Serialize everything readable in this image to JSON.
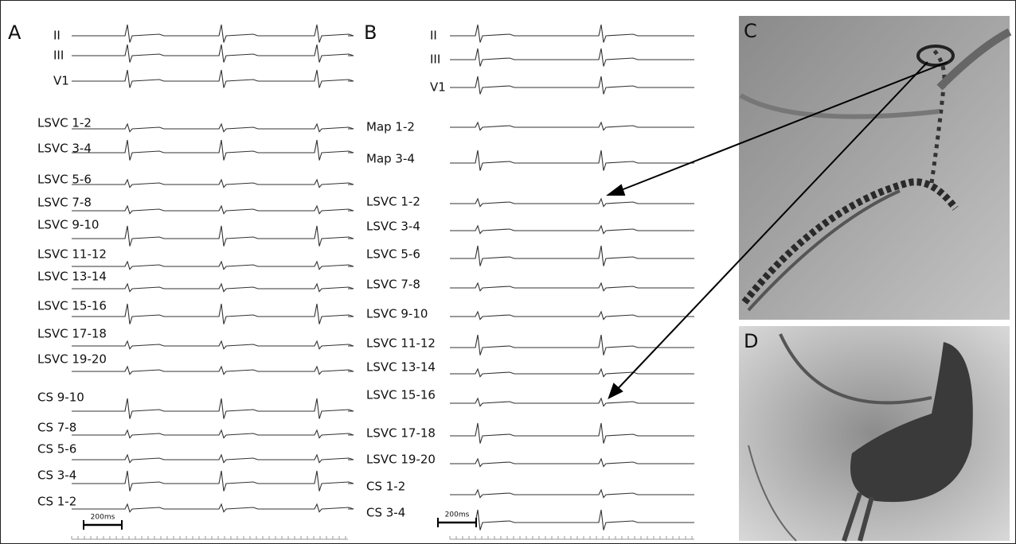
{
  "panels": [
    {
      "label": "A",
      "channels": [
        "II",
        "III",
        "V1",
        "LSVC 1-2",
        "LSVC 3-4",
        "LSVC 5-6",
        "LSVC 7-8",
        "LSVC 9-10",
        "LSVC 11-12",
        "LSVC 13-14",
        "LSVC 15-16",
        "LSVC 17-18",
        "LSVC 19-20",
        "CS 9-10",
        "CS 7-8",
        "CS 5-6",
        "CS 3-4",
        "CS 1-2"
      ],
      "scale_bar": "200ms"
    },
    {
      "label": "B",
      "channels": [
        "II",
        "III",
        "V1",
        "Map 1-2",
        "Map 3-4",
        "LSVC 1-2",
        "LSVC 3-4",
        "LSVC 5-6",
        "LSVC 7-8",
        "LSVC 9-10",
        "LSVC 11-12",
        "LSVC 13-14",
        "LSVC 15-16",
        "LSVC 17-18",
        "LSVC 19-20",
        "CS 1-2",
        "CS 3-4"
      ],
      "scale_bar": "200ms"
    },
    {
      "label": "C"
    },
    {
      "label": "D"
    }
  ]
}
